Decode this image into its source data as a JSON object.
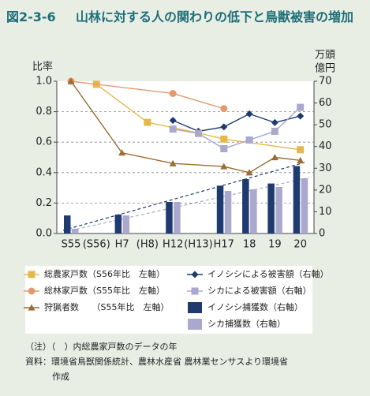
{
  "chart_data": {
    "type": "combo",
    "title_number": "図2-3-6",
    "title": "山林に対する人の関わりの低下と鳥獣被害の増加",
    "y_label": "比率",
    "y2_label": [
      "万頭",
      "億円"
    ],
    "categories": [
      "S55",
      "(S56)",
      "H7",
      "(H8)",
      "H12",
      "(H13)",
      "H17",
      "18",
      "19",
      "20"
    ],
    "ylim": [
      0,
      1
    ],
    "yticks": [
      {
        "value": 0,
        "label": "0.0"
      },
      {
        "value": 0.2,
        "label": "0.2"
      },
      {
        "value": 0.4,
        "label": "0.4"
      },
      {
        "value": 0.6,
        "label": "0.6"
      },
      {
        "value": 0.8,
        "label": "0.8"
      },
      {
        "value": 1,
        "label": "1.0"
      }
    ],
    "y2lim": [
      0,
      70
    ],
    "y2ticks": [
      0,
      10,
      20,
      30,
      40,
      50,
      60,
      70
    ],
    "grid": true,
    "series": [
      {
        "name": "総農家戸数（S56年比　左軸）",
        "type": "line",
        "marker": "square",
        "color": "#e6b84c",
        "values": [
          null,
          0.98,
          null,
          0.73,
          null,
          0.66,
          0.62,
          null,
          null,
          0.55
        ]
      },
      {
        "name": "総林家戸数（S55年比　左軸）",
        "type": "line",
        "marker": "circle",
        "color": "#e49a6e",
        "values": [
          1.0,
          null,
          null,
          null,
          0.92,
          null,
          0.82,
          null,
          null,
          null
        ]
      },
      {
        "name": "狩猟者数　　（S55年比　左軸）",
        "type": "line",
        "marker": "triangle",
        "color": "#9c6d32",
        "values": [
          1.0,
          null,
          0.53,
          null,
          0.46,
          null,
          0.44,
          0.4,
          0.5,
          0.48
        ]
      },
      {
        "name": "イノシシによる被害額（右軸）",
        "type": "line",
        "marker": "diamond",
        "color": "#1f3a6e",
        "axis": "y2",
        "values": [
          null,
          null,
          null,
          null,
          52,
          47,
          49,
          55,
          51,
          54
        ]
      },
      {
        "name": "シカによる被害額（右軸）",
        "type": "line",
        "marker": "square",
        "color": "#aaa8cc",
        "axis": "y2",
        "values": [
          null,
          null,
          null,
          null,
          48,
          46,
          39,
          43,
          47,
          58
        ]
      },
      {
        "name": "イノシシ捕獲数（右軸）",
        "type": "bar",
        "color": "#1f3a6e",
        "axis": "y2",
        "values": [
          8.3,
          null,
          8.7,
          null,
          14.5,
          null,
          22,
          25,
          23,
          31
        ]
      },
      {
        "name": "シカ捕獲数（右軸）",
        "type": "bar",
        "color": "#aaa8cc",
        "axis": "y2",
        "values": [
          2.2,
          null,
          8.3,
          null,
          14.5,
          null,
          19.6,
          20.3,
          21.4,
          25.4
        ]
      }
    ],
    "notes": [
      "（注）（　）内総農家戸数のデータの年",
      "資料：環境省鳥獣関係統計、農林水産省 農林業センサスより環境省",
      "作成"
    ]
  }
}
